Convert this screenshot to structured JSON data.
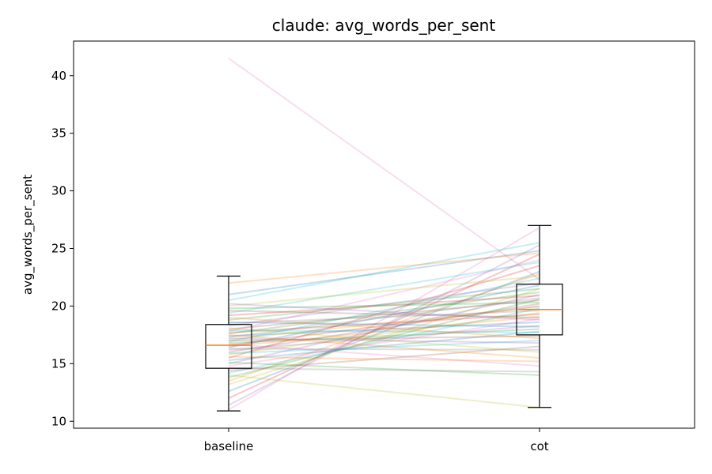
{
  "chart_data": {
    "type": "box-paired-line",
    "title": "claude: avg_words_per_sent",
    "xlabel": "",
    "ylabel": "avg_words_per_sent",
    "categories": [
      "baseline",
      "cot"
    ],
    "ylim": [
      9.4,
      43.0
    ],
    "yticks": [
      10,
      15,
      20,
      25,
      30,
      35,
      40
    ],
    "grid": false,
    "boxes": [
      {
        "category": "baseline",
        "whisker_low": 10.9,
        "q1": 14.6,
        "median": 16.6,
        "q3": 18.4,
        "whisker_high": 22.6
      },
      {
        "category": "cot",
        "whisker_low": 11.2,
        "q1": 17.5,
        "median": 19.7,
        "q3": 21.9,
        "whisker_high": 27.0
      }
    ],
    "pairs": [
      {
        "baseline": 41.5,
        "cot": 22.3,
        "color": "#e377c2"
      },
      {
        "baseline": 11.0,
        "cot": 26.8,
        "color": "#e377c2"
      },
      {
        "baseline": 11.4,
        "cot": 25.3,
        "color": "#9467bd"
      },
      {
        "baseline": 12.0,
        "cot": 24.5,
        "color": "#d62728"
      },
      {
        "baseline": 12.6,
        "cot": 23.0,
        "color": "#1f77b4"
      },
      {
        "baseline": 13.2,
        "cot": 21.5,
        "color": "#bcbd22"
      },
      {
        "baseline": 13.5,
        "cot": 22.8,
        "color": "#ff7f0e"
      },
      {
        "baseline": 13.8,
        "cot": 20.6,
        "color": "#2ca02c"
      },
      {
        "baseline": 14.0,
        "cot": 11.2,
        "color": "#bcbd22"
      },
      {
        "baseline": 14.2,
        "cot": 19.8,
        "color": "#17becf"
      },
      {
        "baseline": 14.4,
        "cot": 16.5,
        "color": "#8c564b"
      },
      {
        "baseline": 14.6,
        "cot": 14.3,
        "color": "#7f7f7f"
      },
      {
        "baseline": 14.8,
        "cot": 18.9,
        "color": "#e377c2"
      },
      {
        "baseline": 15.0,
        "cot": 21.0,
        "color": "#9467bd"
      },
      {
        "baseline": 15.1,
        "cot": 14.0,
        "color": "#2ca02c"
      },
      {
        "baseline": 15.3,
        "cot": 17.8,
        "color": "#1f77b4"
      },
      {
        "baseline": 15.5,
        "cot": 23.5,
        "color": "#d62728"
      },
      {
        "baseline": 15.6,
        "cot": 15.2,
        "color": "#ff7f0e"
      },
      {
        "baseline": 15.8,
        "cot": 19.4,
        "color": "#bcbd22"
      },
      {
        "baseline": 15.9,
        "cot": 17.0,
        "color": "#17becf"
      },
      {
        "baseline": 16.0,
        "cot": 20.2,
        "color": "#8c564b"
      },
      {
        "baseline": 16.2,
        "cot": 18.3,
        "color": "#9467bd"
      },
      {
        "baseline": 16.3,
        "cot": 16.2,
        "color": "#7f7f7f"
      },
      {
        "baseline": 16.4,
        "cot": 21.8,
        "color": "#1f77b4"
      },
      {
        "baseline": 16.5,
        "cot": 19.1,
        "color": "#ff7f0e"
      },
      {
        "baseline": 16.6,
        "cot": 20.0,
        "color": "#d62728"
      },
      {
        "baseline": 16.7,
        "cot": 14.8,
        "color": "#e377c2"
      },
      {
        "baseline": 16.8,
        "cot": 18.0,
        "color": "#2ca02c"
      },
      {
        "baseline": 16.9,
        "cot": 22.4,
        "color": "#17becf"
      },
      {
        "baseline": 17.0,
        "cot": 17.4,
        "color": "#8c564b"
      },
      {
        "baseline": 17.1,
        "cot": 19.9,
        "color": "#bcbd22"
      },
      {
        "baseline": 17.2,
        "cot": 16.8,
        "color": "#9467bd"
      },
      {
        "baseline": 17.3,
        "cot": 20.7,
        "color": "#7f7f7f"
      },
      {
        "baseline": 17.4,
        "cot": 18.6,
        "color": "#1f77b4"
      },
      {
        "baseline": 17.5,
        "cot": 15.5,
        "color": "#ff7f0e"
      },
      {
        "baseline": 17.6,
        "cot": 21.2,
        "color": "#2ca02c"
      },
      {
        "baseline": 17.7,
        "cot": 19.3,
        "color": "#d62728"
      },
      {
        "baseline": 17.8,
        "cot": 24.0,
        "color": "#e377c2"
      },
      {
        "baseline": 17.9,
        "cot": 17.7,
        "color": "#17becf"
      },
      {
        "baseline": 18.0,
        "cot": 20.5,
        "color": "#8c564b"
      },
      {
        "baseline": 18.1,
        "cot": 16.0,
        "color": "#bcbd22"
      },
      {
        "baseline": 18.3,
        "cot": 22.0,
        "color": "#9467bd"
      },
      {
        "baseline": 18.5,
        "cot": 19.6,
        "color": "#7f7f7f"
      },
      {
        "baseline": 18.6,
        "cot": 18.2,
        "color": "#1f77b4"
      },
      {
        "baseline": 18.8,
        "cot": 21.5,
        "color": "#2ca02c"
      },
      {
        "baseline": 19.0,
        "cot": 17.2,
        "color": "#ff7f0e"
      },
      {
        "baseline": 19.2,
        "cot": 20.9,
        "color": "#d62728"
      },
      {
        "baseline": 19.4,
        "cot": 23.8,
        "color": "#17becf"
      },
      {
        "baseline": 19.6,
        "cot": 19.0,
        "color": "#8c564b"
      },
      {
        "baseline": 19.8,
        "cot": 20.3,
        "color": "#2ca02c"
      },
      {
        "baseline": 20.0,
        "cot": 22.6,
        "color": "#bcbd22"
      },
      {
        "baseline": 20.2,
        "cot": 18.8,
        "color": "#9467bd"
      },
      {
        "baseline": 20.5,
        "cot": 25.5,
        "color": "#17becf"
      },
      {
        "baseline": 21.0,
        "cot": 24.8,
        "color": "#1f77b4"
      },
      {
        "baseline": 22.0,
        "cot": 24.6,
        "color": "#ff7f0e"
      }
    ]
  }
}
